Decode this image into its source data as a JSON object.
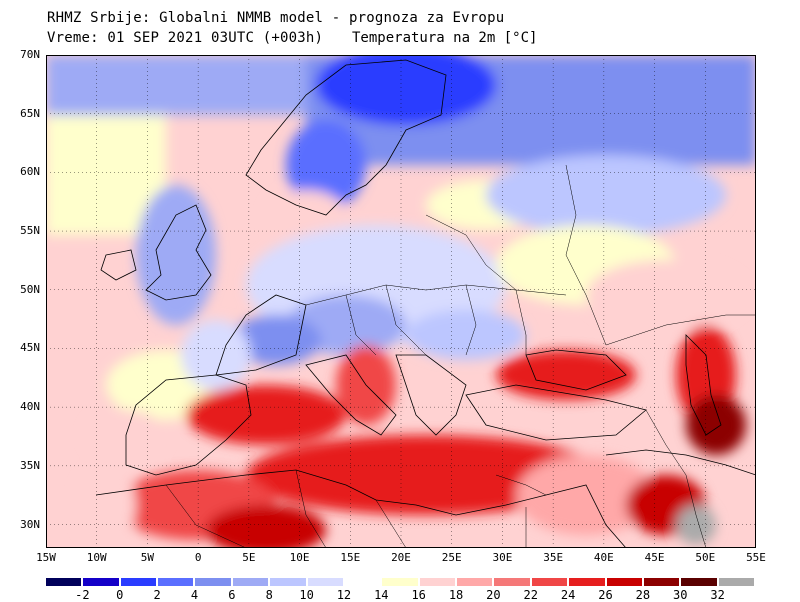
{
  "header": {
    "line1": "RHMZ Srbije: Globalni NMMB model - prognoza za Evropu",
    "line2": "Vreme: 01 SEP 2021 03UTC (+003h)",
    "variable": "Temperatura na 2m [°C]"
  },
  "map": {
    "lat_ticks": [
      "70N",
      "65N",
      "60N",
      "55N",
      "50N",
      "45N",
      "40N",
      "35N",
      "30N"
    ],
    "lon_ticks": [
      "15W",
      "10W",
      "5W",
      "0",
      "5E",
      "10E",
      "15E",
      "20E",
      "25E",
      "30E",
      "35E",
      "40E",
      "45E",
      "50E",
      "55E"
    ],
    "lon_range": [
      -15,
      55
    ],
    "lat_range": [
      28,
      70
    ]
  },
  "colorbar": {
    "labels": [
      "-2",
      "0",
      "2",
      "4",
      "6",
      "8",
      "10",
      "12",
      "14",
      "16",
      "18",
      "20",
      "22",
      "24",
      "26",
      "28",
      "30",
      "32"
    ],
    "colors": [
      "#00005a",
      "#1400c8",
      "#2a3cff",
      "#5a6eff",
      "#7d8ff0",
      "#9eaaf5",
      "#bcc6ff",
      "#d8dcff",
      "#ffffff",
      "#ffffcc",
      "#ffd2d2",
      "#ffa8a8",
      "#f57878",
      "#f04646",
      "#e61e1e",
      "#c80000",
      "#8c0000",
      "#5a0000",
      "#aaaaaa"
    ]
  }
}
